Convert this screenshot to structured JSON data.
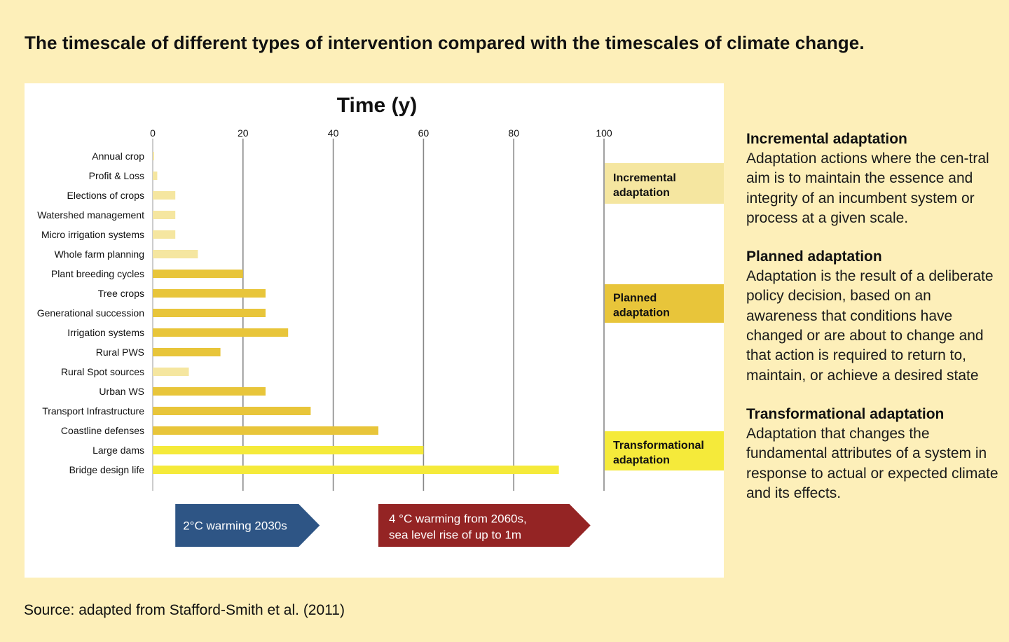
{
  "page": {
    "title": "The timescale of different types of intervention compared with the timescales of climate change.",
    "source": "Source: adapted from Stafford-Smith et al. (2011)"
  },
  "colors": {
    "background": "#fdefb9",
    "incremental": "#f5e6a0",
    "planned": "#e8c53a",
    "transformational": "#f5ea3a",
    "arrow_blue": "#2e5585",
    "arrow_red": "#942424"
  },
  "chart_data": {
    "type": "bar",
    "orientation": "horizontal",
    "title": "Time (y)",
    "xlim": [
      0,
      100
    ],
    "x_ticks": [
      0,
      20,
      40,
      60,
      80,
      100
    ],
    "grid": true,
    "categories": [
      "Annual crop",
      "Profit & Loss",
      "Elections of crops",
      "Watershed management",
      "Micro irrigation systems",
      "Whole farm planning",
      "Plant breeding cycles",
      "Tree crops",
      "Generational succession",
      "Irrigation systems",
      "Rural PWS",
      "Rural Spot sources",
      "Urban WS",
      "Transport Infrastructure",
      "Coastline defenses",
      "Large dams",
      "Bridge design life"
    ],
    "values": [
      0.3,
      1,
      5,
      5,
      5,
      10,
      20,
      25,
      25,
      30,
      15,
      8,
      25,
      35,
      50,
      60,
      90
    ],
    "groups": [
      "incremental",
      "incremental",
      "incremental",
      "incremental",
      "incremental",
      "incremental",
      "planned",
      "planned",
      "planned",
      "planned",
      "planned",
      "incremental",
      "planned",
      "planned",
      "planned",
      "transformational",
      "transformational"
    ],
    "legend": [
      {
        "key": "incremental",
        "line1": "Incremental",
        "line2": "adaptation"
      },
      {
        "key": "planned",
        "line1": "Planned",
        "line2": "adaptation"
      },
      {
        "key": "transformational",
        "line1": "Transformational",
        "line2": "adaptation"
      }
    ],
    "annotations": [
      {
        "key": "warming_2c",
        "line1": "2°C warming 2030s",
        "line2": "",
        "x_start": 5,
        "x_end": 37
      },
      {
        "key": "warming_4c",
        "line1": "4 °C warming from 2060s,",
        "line2": "sea level rise of up to 1m",
        "x_start": 50,
        "x_end": 97
      }
    ]
  },
  "definitions": [
    {
      "heading": "Incremental adaptation",
      "body": "Adaptation actions where the cen-tral aim is to maintain the essence and integrity of an incumbent system or process at a given scale."
    },
    {
      "heading": "Planned adaptation",
      "body": "Adaptation is the result of a deliberate policy decision, based on an awareness that conditions have changed or are about to change and that action is required to return to, maintain, or achieve a desired state"
    },
    {
      "heading": "Transformational adaptation",
      "body": "Adaptation that changes the fundamental attributes of a system in response to actual or expected climate and its effects."
    }
  ]
}
